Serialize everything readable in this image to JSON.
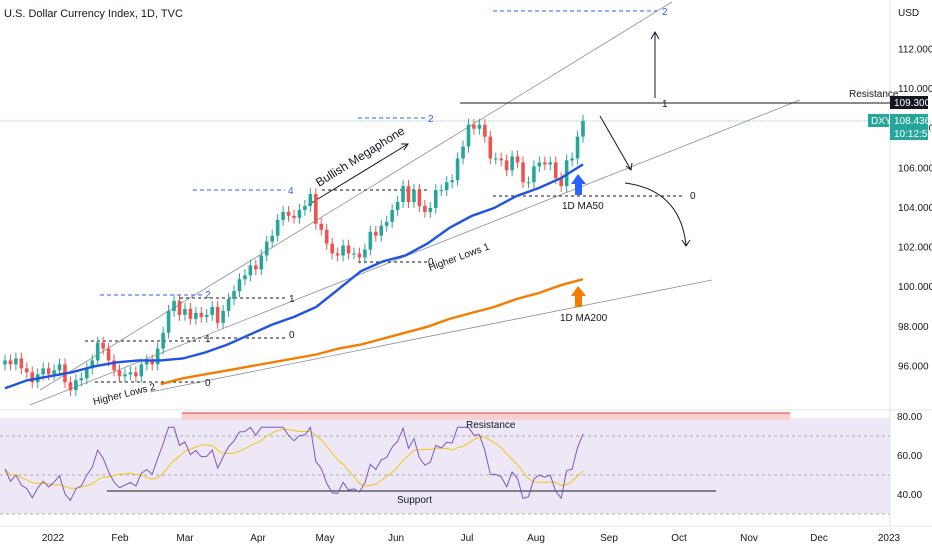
{
  "header": {
    "title": "U.S. Dollar Currency Index, 1D, TVC"
  },
  "chart_data": {
    "type": "candlestick",
    "title": "U.S. Dollar Currency Index, 1D, TVC",
    "price_axis": {
      "unit": "USD",
      "ticks": [
        112.0,
        110.0,
        108.0,
        106.0,
        104.0,
        102.0,
        100.0,
        98.0,
        96.0
      ],
      "tick_labels": [
        "112.000",
        "110.000",
        "108.000",
        "106.000",
        "104.000",
        "102.000",
        "100.000",
        "98.000",
        "96.000"
      ],
      "ylim": [
        94.0,
        114.5
      ]
    },
    "rsi_axis": {
      "ticks": [
        80,
        60,
        40
      ],
      "tick_labels": [
        "80.00",
        "60.00",
        "40.00"
      ],
      "ylim": [
        28,
        88
      ]
    },
    "time_axis": {
      "labels": [
        "2022",
        "Feb",
        "Mar",
        "Apr",
        "May",
        "Jun",
        "Jul",
        "Aug",
        "Sep",
        "Oct",
        "Nov",
        "Dec",
        "2023"
      ]
    },
    "price_badges": [
      {
        "label": "109.300",
        "value": 109.3,
        "color": "#131722"
      },
      {
        "label": "DXY",
        "value": 108.436,
        "color": "#26a69a"
      },
      {
        "label": "108.436",
        "value": 108.436,
        "color": "#26a69a"
      },
      {
        "label": "10:12:58",
        "value": 108.436,
        "color": "#26a69a"
      }
    ],
    "closes": [
      96.3,
      96.1,
      96.4,
      95.9,
      95.7,
      95.2,
      95.6,
      95.9,
      95.6,
      95.8,
      96.1,
      95.2,
      94.8,
      95.3,
      95.4,
      95.9,
      96.3,
      97.2,
      96.9,
      96.3,
      95.8,
      95.5,
      95.6,
      95.7,
      95.5,
      96.1,
      96.3,
      96.1,
      96.9,
      97.7,
      98.8,
      99.3,
      98.6,
      98.9,
      98.4,
      98.7,
      98.5,
      98.6,
      99.0,
      98.2,
      98.8,
      99.4,
      99.8,
      100.4,
      100.6,
      101.1,
      100.9,
      101.6,
      102.3,
      102.6,
      103.4,
      103.8,
      103.6,
      103.5,
      103.9,
      104.1,
      104.7,
      103.2,
      102.9,
      102.2,
      101.7,
      101.6,
      102.1,
      101.7,
      101.7,
      101.5,
      101.9,
      102.8,
      102.6,
      103.1,
      103.3,
      103.9,
      104.3,
      105.1,
      104.3,
      104.9,
      104.1,
      103.8,
      104.0,
      104.9,
      104.9,
      105.3,
      105.4,
      106.5,
      107.1,
      108.2,
      108.0,
      108.2,
      107.6,
      106.5,
      106.5,
      106.4,
      105.9,
      106.6,
      106.3,
      105.3,
      105.3,
      106.1,
      106.3,
      106.2,
      106.3,
      105.5,
      105.1,
      106.4,
      106.5,
      107.6,
      108.4
    ],
    "series": [
      {
        "name": "1D MA50",
        "color": "#1e53e5",
        "values": [
          94.9,
          95.3,
          95.5,
          95.7,
          96.0,
          96.2,
          96.3,
          96.3,
          96.4,
          96.7,
          97.1,
          97.6,
          98.1,
          98.5,
          99.0,
          99.9,
          100.8,
          101.3,
          101.6,
          102.2,
          103.0,
          103.6,
          104.0,
          104.6,
          105.0,
          105.5,
          106.2
        ]
      },
      {
        "name": "1D MA200",
        "color": "#f57c00",
        "values": [
          null,
          null,
          null,
          null,
          null,
          null,
          null,
          95.1,
          95.4,
          95.6,
          95.8,
          96.0,
          96.2,
          96.4,
          96.6,
          96.9,
          97.1,
          97.4,
          97.7,
          98.0,
          98.4,
          98.7,
          99.0,
          99.4,
          99.7,
          100.1,
          100.4
        ]
      }
    ],
    "annotations": [
      {
        "text": "Bullish Megaphone"
      },
      {
        "text": "Resistance"
      },
      {
        "text": "Higher Lows 1"
      },
      {
        "text": "Higher Lows 2"
      },
      {
        "text": "1D MA50"
      },
      {
        "text": "1D MA200"
      },
      {
        "text": "Resistance"
      },
      {
        "text": "Support"
      }
    ],
    "fib_labels": [
      "2",
      "4",
      "2",
      "1",
      "0",
      "1",
      "0",
      "0",
      "2",
      "1",
      "0"
    ]
  }
}
